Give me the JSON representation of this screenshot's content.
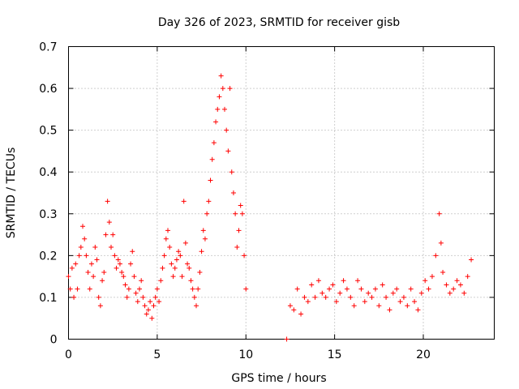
{
  "chart_data": {
    "type": "scatter",
    "title": "Day 326 of 2023, SRMTID for receiver gisb",
    "xlabel": "GPS time / hours",
    "ylabel": "SRMTID / TECUs",
    "xlim": [
      0,
      24
    ],
    "ylim": [
      0,
      0.7
    ],
    "xticks": [
      0,
      5,
      10,
      15,
      20
    ],
    "xtick_labels": [
      "0",
      "5",
      "10",
      "15",
      "20"
    ],
    "yticks": [
      0,
      0.1,
      0.2,
      0.3,
      0.4,
      0.5,
      0.6,
      0.7
    ],
    "ytick_labels": [
      "0",
      "0.1",
      "0.2",
      "0.3",
      "0.4",
      "0.5",
      "0.6",
      "0.7"
    ],
    "grid": true,
    "marker": "+",
    "color": "#ff0000",
    "series": [
      {
        "name": "SRMTID",
        "points": [
          [
            0.0,
            0.15
          ],
          [
            0.1,
            0.12
          ],
          [
            0.2,
            0.17
          ],
          [
            0.3,
            0.1
          ],
          [
            0.4,
            0.18
          ],
          [
            0.5,
            0.12
          ],
          [
            0.6,
            0.2
          ],
          [
            0.7,
            0.22
          ],
          [
            0.8,
            0.27
          ],
          [
            0.9,
            0.24
          ],
          [
            1.0,
            0.2
          ],
          [
            1.1,
            0.16
          ],
          [
            1.2,
            0.12
          ],
          [
            1.3,
            0.18
          ],
          [
            1.4,
            0.15
          ],
          [
            1.5,
            0.22
          ],
          [
            1.6,
            0.19
          ],
          [
            1.7,
            0.1
          ],
          [
            1.8,
            0.08
          ],
          [
            1.9,
            0.14
          ],
          [
            2.0,
            0.16
          ],
          [
            2.1,
            0.25
          ],
          [
            2.2,
            0.33
          ],
          [
            2.3,
            0.28
          ],
          [
            2.4,
            0.22
          ],
          [
            2.5,
            0.25
          ],
          [
            2.6,
            0.2
          ],
          [
            2.7,
            0.17
          ],
          [
            2.8,
            0.19
          ],
          [
            2.9,
            0.18
          ],
          [
            3.0,
            0.16
          ],
          [
            3.1,
            0.15
          ],
          [
            3.2,
            0.13
          ],
          [
            3.3,
            0.1
          ],
          [
            3.4,
            0.12
          ],
          [
            3.5,
            0.18
          ],
          [
            3.6,
            0.21
          ],
          [
            3.7,
            0.15
          ],
          [
            3.8,
            0.11
          ],
          [
            3.9,
            0.09
          ],
          [
            4.0,
            0.12
          ],
          [
            4.1,
            0.14
          ],
          [
            4.2,
            0.1
          ],
          [
            4.3,
            0.08
          ],
          [
            4.4,
            0.06
          ],
          [
            4.5,
            0.07
          ],
          [
            4.6,
            0.09
          ],
          [
            4.7,
            0.05
          ],
          [
            4.8,
            0.08
          ],
          [
            4.9,
            0.1
          ],
          [
            5.0,
            0.12
          ],
          [
            5.1,
            0.09
          ],
          [
            5.2,
            0.14
          ],
          [
            5.3,
            0.17
          ],
          [
            5.4,
            0.2
          ],
          [
            5.5,
            0.24
          ],
          [
            5.6,
            0.26
          ],
          [
            5.7,
            0.22
          ],
          [
            5.8,
            0.18
          ],
          [
            5.9,
            0.15
          ],
          [
            6.0,
            0.17
          ],
          [
            6.1,
            0.19
          ],
          [
            6.2,
            0.21
          ],
          [
            6.3,
            0.2
          ],
          [
            6.4,
            0.15
          ],
          [
            6.5,
            0.33
          ],
          [
            6.6,
            0.23
          ],
          [
            6.7,
            0.18
          ],
          [
            6.8,
            0.17
          ],
          [
            6.9,
            0.14
          ],
          [
            7.0,
            0.12
          ],
          [
            7.1,
            0.1
          ],
          [
            7.2,
            0.08
          ],
          [
            7.3,
            0.12
          ],
          [
            7.4,
            0.16
          ],
          [
            7.5,
            0.21
          ],
          [
            7.6,
            0.26
          ],
          [
            7.7,
            0.24
          ],
          [
            7.8,
            0.3
          ],
          [
            7.9,
            0.33
          ],
          [
            8.0,
            0.38
          ],
          [
            8.1,
            0.43
          ],
          [
            8.2,
            0.47
          ],
          [
            8.3,
            0.52
          ],
          [
            8.4,
            0.55
          ],
          [
            8.5,
            0.58
          ],
          [
            8.6,
            0.63
          ],
          [
            8.7,
            0.6
          ],
          [
            8.8,
            0.55
          ],
          [
            8.9,
            0.5
          ],
          [
            9.0,
            0.45
          ],
          [
            9.1,
            0.6
          ],
          [
            9.2,
            0.4
          ],
          [
            9.3,
            0.35
          ],
          [
            9.4,
            0.3
          ],
          [
            9.5,
            0.22
          ],
          [
            9.6,
            0.26
          ],
          [
            9.7,
            0.32
          ],
          [
            9.8,
            0.3
          ],
          [
            9.9,
            0.2
          ],
          [
            10.0,
            0.12
          ],
          [
            12.3,
            0.0
          ],
          [
            12.5,
            0.08
          ],
          [
            12.7,
            0.07
          ],
          [
            12.9,
            0.12
          ],
          [
            13.1,
            0.06
          ],
          [
            13.3,
            0.1
          ],
          [
            13.5,
            0.09
          ],
          [
            13.7,
            0.13
          ],
          [
            13.9,
            0.1
          ],
          [
            14.1,
            0.14
          ],
          [
            14.3,
            0.11
          ],
          [
            14.5,
            0.1
          ],
          [
            14.7,
            0.12
          ],
          [
            14.9,
            0.13
          ],
          [
            15.1,
            0.09
          ],
          [
            15.3,
            0.11
          ],
          [
            15.5,
            0.14
          ],
          [
            15.7,
            0.12
          ],
          [
            15.9,
            0.1
          ],
          [
            16.1,
            0.08
          ],
          [
            16.3,
            0.14
          ],
          [
            16.5,
            0.12
          ],
          [
            16.7,
            0.09
          ],
          [
            16.9,
            0.11
          ],
          [
            17.1,
            0.1
          ],
          [
            17.3,
            0.12
          ],
          [
            17.5,
            0.08
          ],
          [
            17.7,
            0.13
          ],
          [
            17.9,
            0.1
          ],
          [
            18.1,
            0.07
          ],
          [
            18.3,
            0.11
          ],
          [
            18.5,
            0.12
          ],
          [
            18.7,
            0.09
          ],
          [
            18.9,
            0.1
          ],
          [
            19.1,
            0.08
          ],
          [
            19.3,
            0.12
          ],
          [
            19.5,
            0.09
          ],
          [
            19.7,
            0.07
          ],
          [
            19.9,
            0.11
          ],
          [
            20.1,
            0.14
          ],
          [
            20.3,
            0.12
          ],
          [
            20.5,
            0.15
          ],
          [
            20.7,
            0.2
          ],
          [
            20.9,
            0.3
          ],
          [
            21.0,
            0.23
          ],
          [
            21.1,
            0.16
          ],
          [
            21.3,
            0.13
          ],
          [
            21.5,
            0.11
          ],
          [
            21.7,
            0.12
          ],
          [
            21.9,
            0.14
          ],
          [
            22.1,
            0.13
          ],
          [
            22.3,
            0.11
          ],
          [
            22.5,
            0.15
          ],
          [
            22.7,
            0.19
          ]
        ]
      }
    ]
  }
}
